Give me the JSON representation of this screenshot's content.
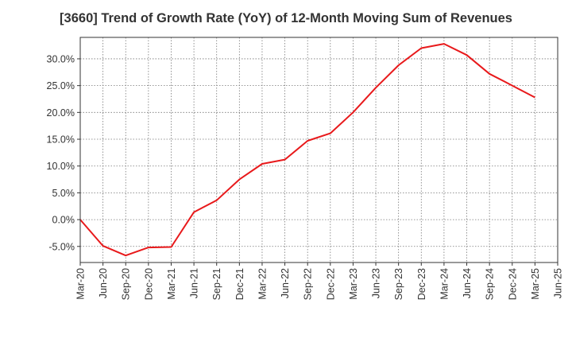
{
  "chart_data": {
    "type": "line",
    "title": "[3660]  Trend of Growth Rate (YoY) of 12-Month Moving Sum of Revenues",
    "xlabel": "",
    "ylabel": "",
    "x": [
      "Mar-20",
      "Jun-20",
      "Sep-20",
      "Dec-20",
      "Mar-21",
      "Jun-21",
      "Sep-21",
      "Dec-21",
      "Mar-22",
      "Jun-22",
      "Sep-22",
      "Dec-22",
      "Mar-23",
      "Jun-23",
      "Sep-23",
      "Dec-23",
      "Mar-24",
      "Jun-24",
      "Sep-24",
      "Dec-24",
      "Mar-25"
    ],
    "x_ticks": [
      "Mar-20",
      "Jun-20",
      "Sep-20",
      "Dec-20",
      "Mar-21",
      "Jun-21",
      "Sep-21",
      "Dec-21",
      "Mar-22",
      "Jun-22",
      "Sep-22",
      "Dec-22",
      "Mar-23",
      "Jun-23",
      "Sep-23",
      "Dec-23",
      "Mar-24",
      "Jun-24",
      "Sep-24",
      "Dec-24",
      "Mar-25",
      "Jun-25"
    ],
    "series": [
      {
        "color": "#e8191b",
        "values": [
          0.0,
          -4.9,
          -6.7,
          -5.2,
          -5.1,
          1.4,
          3.6,
          7.5,
          10.4,
          11.2,
          14.7,
          16.1,
          20.0,
          24.6,
          28.8,
          32.0,
          32.8,
          30.7,
          27.2,
          25.0,
          22.8
        ]
      }
    ],
    "y_ticks": [
      "-5.0%",
      "0.0%",
      "5.0%",
      "10.0%",
      "15.0%",
      "20.0%",
      "25.0%",
      "30.0%"
    ],
    "y_tick_values": [
      -5,
      0,
      5,
      10,
      15,
      20,
      25,
      30
    ],
    "ylim": [
      -8.0,
      34.0
    ],
    "grid": true,
    "legend": "none"
  }
}
